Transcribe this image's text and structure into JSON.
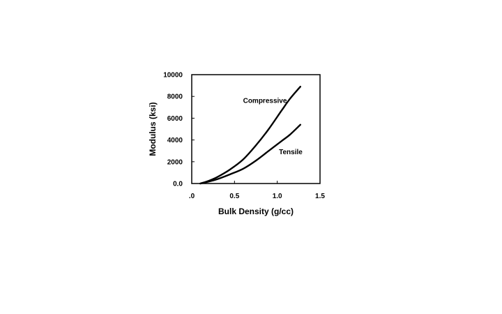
{
  "chart_data": {
    "type": "line",
    "title": "",
    "xlabel": "Bulk Density (g/cc)",
    "ylabel": "Modulus (ksi)",
    "xlim": [
      0,
      1.5
    ],
    "ylim": [
      0,
      10000
    ],
    "x_ticks": [
      {
        "value": 0,
        "label": ".0"
      },
      {
        "value": 0.5,
        "label": "0.5"
      },
      {
        "value": 1.0,
        "label": "1.0"
      },
      {
        "value": 1.5,
        "label": "1.5"
      }
    ],
    "y_ticks": [
      {
        "value": 0,
        "label": "0.0"
      },
      {
        "value": 2000,
        "label": "2000"
      },
      {
        "value": 4000,
        "label": "4000"
      },
      {
        "value": 6000,
        "label": "6000"
      },
      {
        "value": 8000,
        "label": "8000"
      },
      {
        "value": 10000,
        "label": "10000"
      }
    ],
    "grid": false,
    "series": [
      {
        "name": "Compressive",
        "x": [
          0.1,
          0.2,
          0.3,
          0.45,
          0.6,
          0.75,
          0.9,
          1.05,
          1.15,
          1.27
        ],
        "y": [
          0,
          250,
          600,
          1300,
          2200,
          3500,
          5000,
          6700,
          7800,
          8900
        ]
      },
      {
        "name": "Tensile",
        "x": [
          0.1,
          0.2,
          0.3,
          0.45,
          0.6,
          0.75,
          0.9,
          1.05,
          1.15,
          1.27
        ],
        "y": [
          0,
          180,
          400,
          850,
          1350,
          2100,
          3000,
          3900,
          4500,
          5400
        ]
      }
    ],
    "annotations": [
      {
        "text": "Compressive",
        "series": "Compressive",
        "x": 0.6,
        "y": 7400
      },
      {
        "text": "Tensile",
        "series": "Tensile",
        "x": 1.02,
        "y": 2700
      }
    ]
  }
}
